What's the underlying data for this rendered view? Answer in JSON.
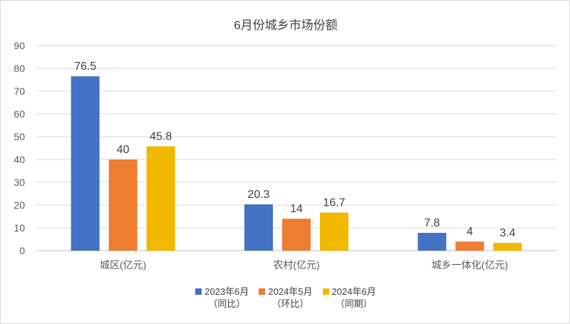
{
  "chart_data": {
    "type": "bar",
    "title": "6月份城乡市场份额",
    "categories": [
      "城区(亿元)",
      "农村(亿元)",
      "城乡一体化(亿元)"
    ],
    "series": [
      {
        "name": "2023年6月",
        "name_sub": "（同比）",
        "color": "#4472c4",
        "values": [
          76.5,
          20.3,
          7.8
        ]
      },
      {
        "name": "2024年5月",
        "name_sub": "（环比）",
        "color": "#ed7d31",
        "values": [
          40,
          14,
          4
        ]
      },
      {
        "name": "2024年6月",
        "name_sub": "（同期）",
        "color": "#f2b800",
        "values": [
          45.8,
          16.7,
          3.4
        ]
      }
    ],
    "yticks": [
      0,
      10,
      20,
      30,
      40,
      50,
      60,
      70,
      80,
      90
    ],
    "ylim": [
      0,
      90
    ],
    "grid": true,
    "legend_position": "bottom"
  }
}
